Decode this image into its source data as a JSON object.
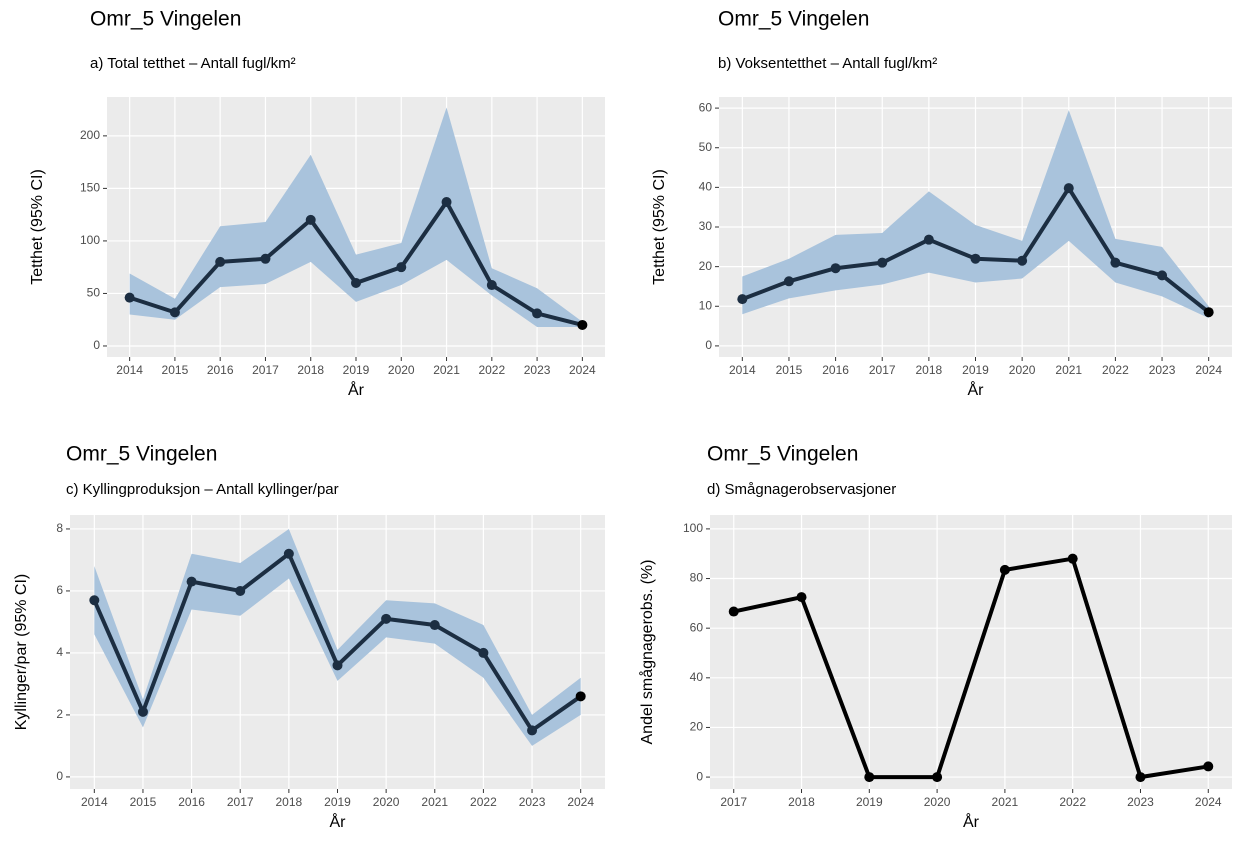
{
  "chart_data": [
    {
      "type": "line",
      "title": "Omr_5 Vingelen",
      "subtitle": "a) Total tetthet – Antall fugl/km²",
      "x_label": "År",
      "y_label": "Tetthet (95% CI)",
      "x": [
        2014,
        2015,
        2016,
        2017,
        2018,
        2019,
        2020,
        2021,
        2022,
        2023,
        2024
      ],
      "values": [
        46,
        32,
        80,
        83,
        120,
        60,
        75,
        137,
        58,
        31,
        20
      ],
      "lower": [
        30,
        25,
        56,
        59,
        80,
        42,
        58,
        82,
        48,
        18,
        18
      ],
      "upper": [
        69,
        45,
        114,
        118,
        182,
        87,
        98,
        227,
        74,
        55,
        23
      ],
      "color": "#1c2e42",
      "band_color": "#a9c3dc",
      "xlim": [
        2013.5,
        2024.5
      ],
      "ylim": [
        -10.5,
        237
      ],
      "xticks": [
        2014,
        2015,
        2016,
        2017,
        2018,
        2019,
        2020,
        2021,
        2022,
        2023,
        2024
      ],
      "yticks": [
        0,
        50,
        100,
        150,
        200
      ],
      "grid": true
    },
    {
      "type": "line",
      "title": "Omr_5 Vingelen",
      "subtitle": "b) Voksentetthet – Antall fugl/km²",
      "x_label": "År",
      "y_label": "Tetthet (95% CI)",
      "x": [
        2014,
        2015,
        2016,
        2017,
        2018,
        2019,
        2020,
        2021,
        2022,
        2023,
        2024
      ],
      "values": [
        11.8,
        16.3,
        19.6,
        21,
        26.8,
        22,
        21.5,
        39.8,
        21,
        17.8,
        8.5
      ],
      "lower": [
        8,
        12,
        14,
        15.5,
        18.5,
        16,
        17,
        26.5,
        16,
        12.5,
        7
      ],
      "upper": [
        17.5,
        22,
        28,
        28.5,
        39,
        30.5,
        26.5,
        59.5,
        27,
        25,
        10
      ],
      "color": "#1c2e42",
      "band_color": "#a9c3dc",
      "xlim": [
        2013.5,
        2024.5
      ],
      "ylim": [
        -2.8,
        62.8
      ],
      "xticks": [
        2014,
        2015,
        2016,
        2017,
        2018,
        2019,
        2020,
        2021,
        2022,
        2023,
        2024
      ],
      "yticks": [
        0,
        10,
        20,
        30,
        40,
        50,
        60
      ],
      "grid": true
    },
    {
      "type": "line",
      "title": "Omr_5 Vingelen",
      "subtitle": "c) Kyllingproduksjon – Antall kyllinger/par",
      "x_label": "År",
      "y_label": "Kyllinger/par (95% CI)",
      "x": [
        2014,
        2015,
        2016,
        2017,
        2018,
        2019,
        2020,
        2021,
        2022,
        2023,
        2024
      ],
      "values": [
        5.7,
        2.1,
        6.3,
        6.0,
        7.2,
        3.6,
        5.1,
        4.9,
        4.0,
        1.5,
        2.6
      ],
      "lower": [
        4.6,
        1.6,
        5.4,
        5.2,
        6.4,
        3.1,
        4.5,
        4.3,
        3.2,
        1.0,
        2.0
      ],
      "upper": [
        6.8,
        2.5,
        7.2,
        6.9,
        8.0,
        4.1,
        5.7,
        5.6,
        4.9,
        2.0,
        3.2
      ],
      "color": "#1c2e42",
      "band_color": "#a9c3dc",
      "xlim": [
        2013.5,
        2024.5
      ],
      "ylim": [
        -0.39,
        8.45
      ],
      "xticks": [
        2014,
        2015,
        2016,
        2017,
        2018,
        2019,
        2020,
        2021,
        2022,
        2023,
        2024
      ],
      "yticks": [
        0,
        2,
        4,
        6,
        8
      ],
      "grid": true
    },
    {
      "type": "line",
      "title": "Omr_5 Vingelen",
      "subtitle": "d) Smågnagerobservasjoner",
      "x_label": "År",
      "y_label": "Andel smågnagerobs. (%)",
      "x": [
        2017,
        2018,
        2019,
        2020,
        2021,
        2022,
        2023,
        2024
      ],
      "values": [
        66.7,
        72.5,
        0,
        0,
        83.5,
        88,
        0,
        4.3
      ],
      "color": "#000000",
      "xlim": [
        2016.65,
        2024.35
      ],
      "ylim": [
        -4.8,
        105.6
      ],
      "xticks": [
        2017,
        2018,
        2019,
        2020,
        2021,
        2022,
        2023,
        2024
      ],
      "yticks": [
        0,
        20,
        40,
        60,
        80,
        100
      ],
      "grid": true
    }
  ]
}
